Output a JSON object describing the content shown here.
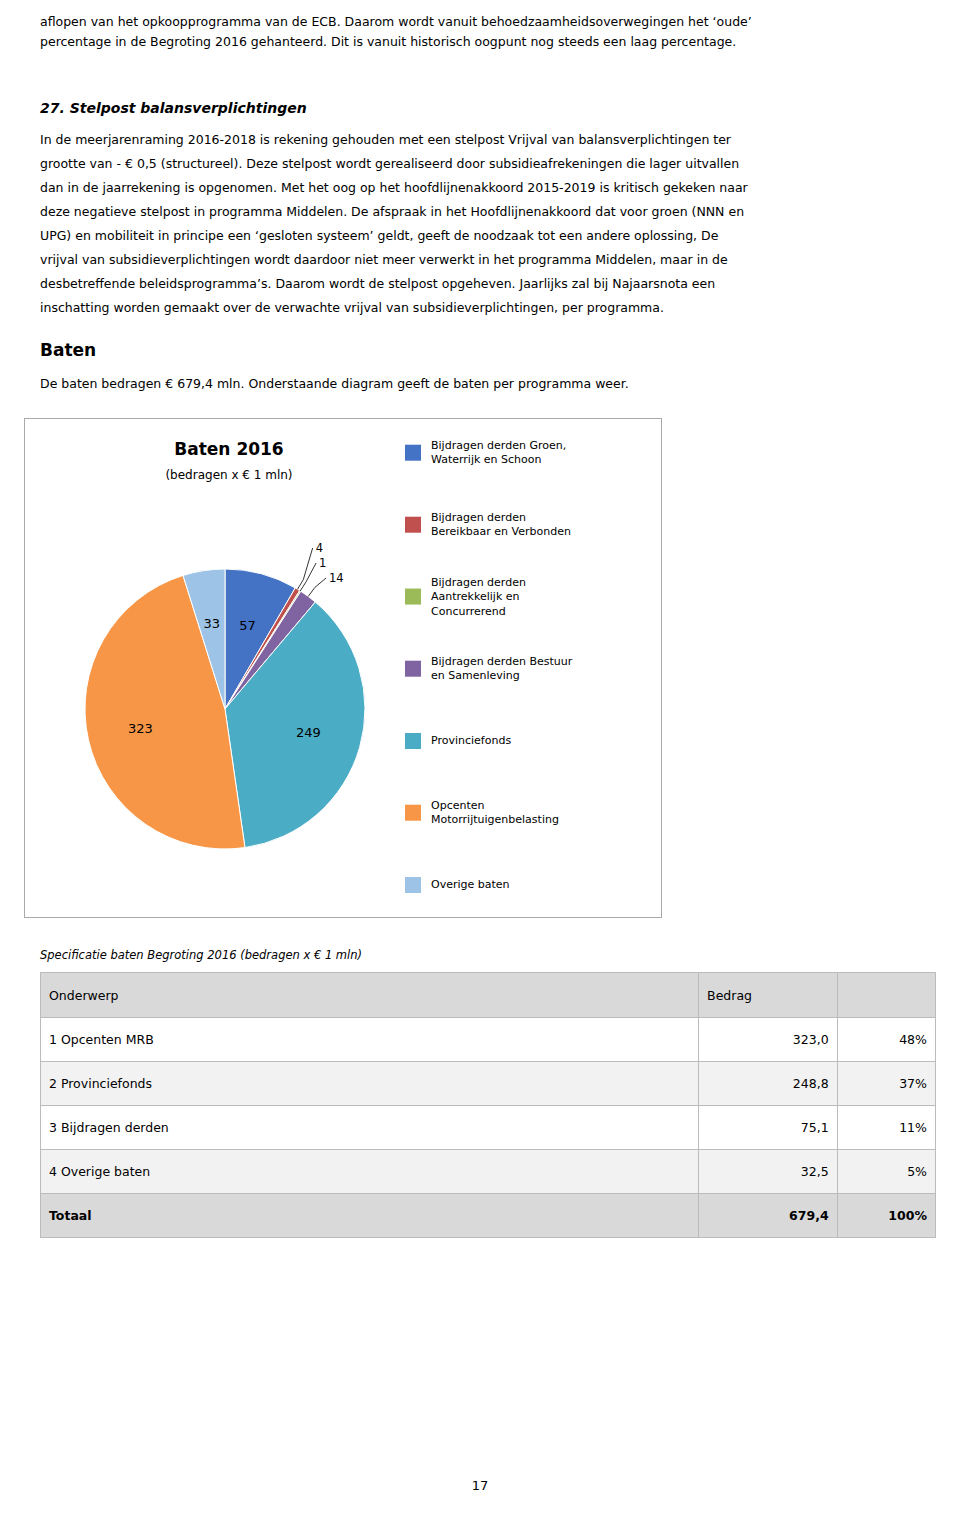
{
  "chart_data": {
    "type": "pie",
    "title": "Baten 2016",
    "subtitle": "(bedragen x € 1 mln)",
    "categories": [
      "Bijdragen derden Groen,\nWaterrijk en Schoon",
      "Bijdragen derden\nBereikbaar en Verbonden",
      "Bijdragen derden\nAantrekkelijk en\nConcurrerend",
      "Bijdragen derden Bestuur\nen Samenleving",
      "Provinciefonds",
      "Opcenten\nMotorrijtuigenbelasting",
      "Overige baten"
    ],
    "values": [
      57,
      4,
      1,
      14,
      249,
      323,
      33
    ],
    "colors": [
      "#4472C4",
      "#C0504D",
      "#9BBB59",
      "#8064A2",
      "#4BACC6",
      "#F79646",
      "#9DC3E6"
    ],
    "data_labels": true,
    "legend": "right"
  },
  "page": {
    "top_text_lines": [
      "aflopen van het opkoopprogramma van de ECB. Daarom wordt vanuit behoedzaamheidsoverwegingen het ‘oude’",
      "percentage in de Begroting 2016 gehanteerd. Dit is vanuit historisch oogpunt nog steeds een laag percentage."
    ],
    "section_heading": "27. Stelpost balansverplichtingen",
    "section_body": [
      "In de meerjarenraming 2016-2018 is rekening gehouden met een stelpost Vrijval van balansverplichtingen ter",
      "grootte van - € 0,5 (structureel). Deze stelpost wordt gerealiseerd door subsidieafrekeningen die lager uitvallen",
      "dan in de jaarrekening is opgenomen. Met het oog op het hoofdlijnenakkoord 2015-2019 is kritisch gekeken naar",
      "deze negatieve stelpost in programma Middelen. De afspraak in het Hoofdlijnenakkoord dat voor groen (NNN en",
      "UPG) en mobiliteit in principe een ‘gesloten systeem’ geldt, geeft de noodzaak tot een andere oplossing, De",
      "vrijval van subsidieverplichtingen wordt daardoor niet meer verwerkt in het programma Middelen, maar in de",
      "desbetreffende beleidsprogramma’s. Daarom wordt de stelpost opgeheven. Jaarlijks zal bij Najaarsnota een",
      "inschatting worden gemaakt over de verwachte vrijval van subsidieverplichtingen, per programma."
    ],
    "baten_heading": "Baten",
    "baten_intro": "De baten bedragen € 679,4 mln. Onderstaande diagram geeft de baten per programma weer.",
    "page_number": "17"
  },
  "table": {
    "title": "Specificatie baten Begroting 2016 (bedragen x € 1 mln)",
    "columns": [
      "Onderwerp",
      "Bedrag"
    ],
    "rows": [
      [
        "1 Opcenten MRB",
        "323,0",
        "48%"
      ],
      [
        "2 Provinciefonds",
        "248,8",
        "37%"
      ],
      [
        "3 Bijdragen derden",
        "75,1",
        "11%"
      ],
      [
        "4 Overige baten",
        "32,5",
        "5%"
      ]
    ],
    "total": [
      "Totaal",
      "679,4",
      "100%"
    ]
  }
}
